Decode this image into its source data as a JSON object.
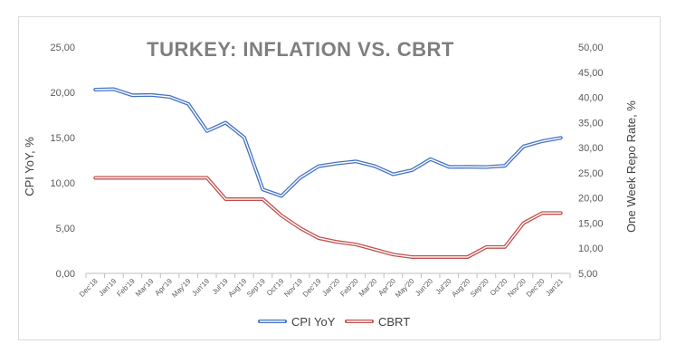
{
  "chart_data": {
    "type": "line",
    "title": "TURKEY: INFLATION VS. CBRT",
    "ylabel_left": "CPI YoY, %",
    "ylabel_right": "One Week Repo Rate, %",
    "ylim_left": [
      0,
      25
    ],
    "ylim_right": [
      5,
      50
    ],
    "yticks_left": [
      "0,00",
      "5,00",
      "10,00",
      "15,00",
      "20,00",
      "25,00"
    ],
    "yticks_right": [
      "5,00",
      "10,00",
      "15,00",
      "20,00",
      "25,00",
      "30,00",
      "35,00",
      "40,00",
      "45,00",
      "50,00"
    ],
    "grid": false,
    "legend_position": "bottom",
    "categories": [
      "Dec'18",
      "Jan'19",
      "Feb'19",
      "Mar'19",
      "Apr'19",
      "May'19",
      "Jun'19",
      "Jul'19",
      "Aug'19",
      "Sep'19",
      "Oct'19",
      "Nov'19",
      "Dec'19",
      "Jan'20",
      "Feb'20",
      "Mar'20",
      "Apr'20",
      "May'20",
      "Jun'20",
      "Jul'20",
      "Aug'20",
      "Sep'20",
      "Oct'20",
      "Nov'20",
      "Dec'20",
      "Jan'21"
    ],
    "series": [
      {
        "name": "CPI YoY",
        "axis": "left",
        "color": "#4472c4",
        "values": [
          20.3,
          20.35,
          19.67,
          19.71,
          19.5,
          18.71,
          15.72,
          16.65,
          15.01,
          9.26,
          8.55,
          10.56,
          11.84,
          12.15,
          12.37,
          11.86,
          10.94,
          11.39,
          12.62,
          11.76,
          11.77,
          11.75,
          11.89,
          14.03,
          14.6,
          14.97
        ]
      },
      {
        "name": "CBRT",
        "axis": "right",
        "color": "#c0504d",
        "values": [
          24,
          24,
          24,
          24,
          24,
          24,
          24,
          19.75,
          19.75,
          19.75,
          16.5,
          14,
          12,
          11.25,
          10.75,
          9.75,
          8.75,
          8.25,
          8.25,
          8.25,
          8.25,
          10.25,
          10.25,
          15,
          17,
          17
        ]
      }
    ]
  }
}
